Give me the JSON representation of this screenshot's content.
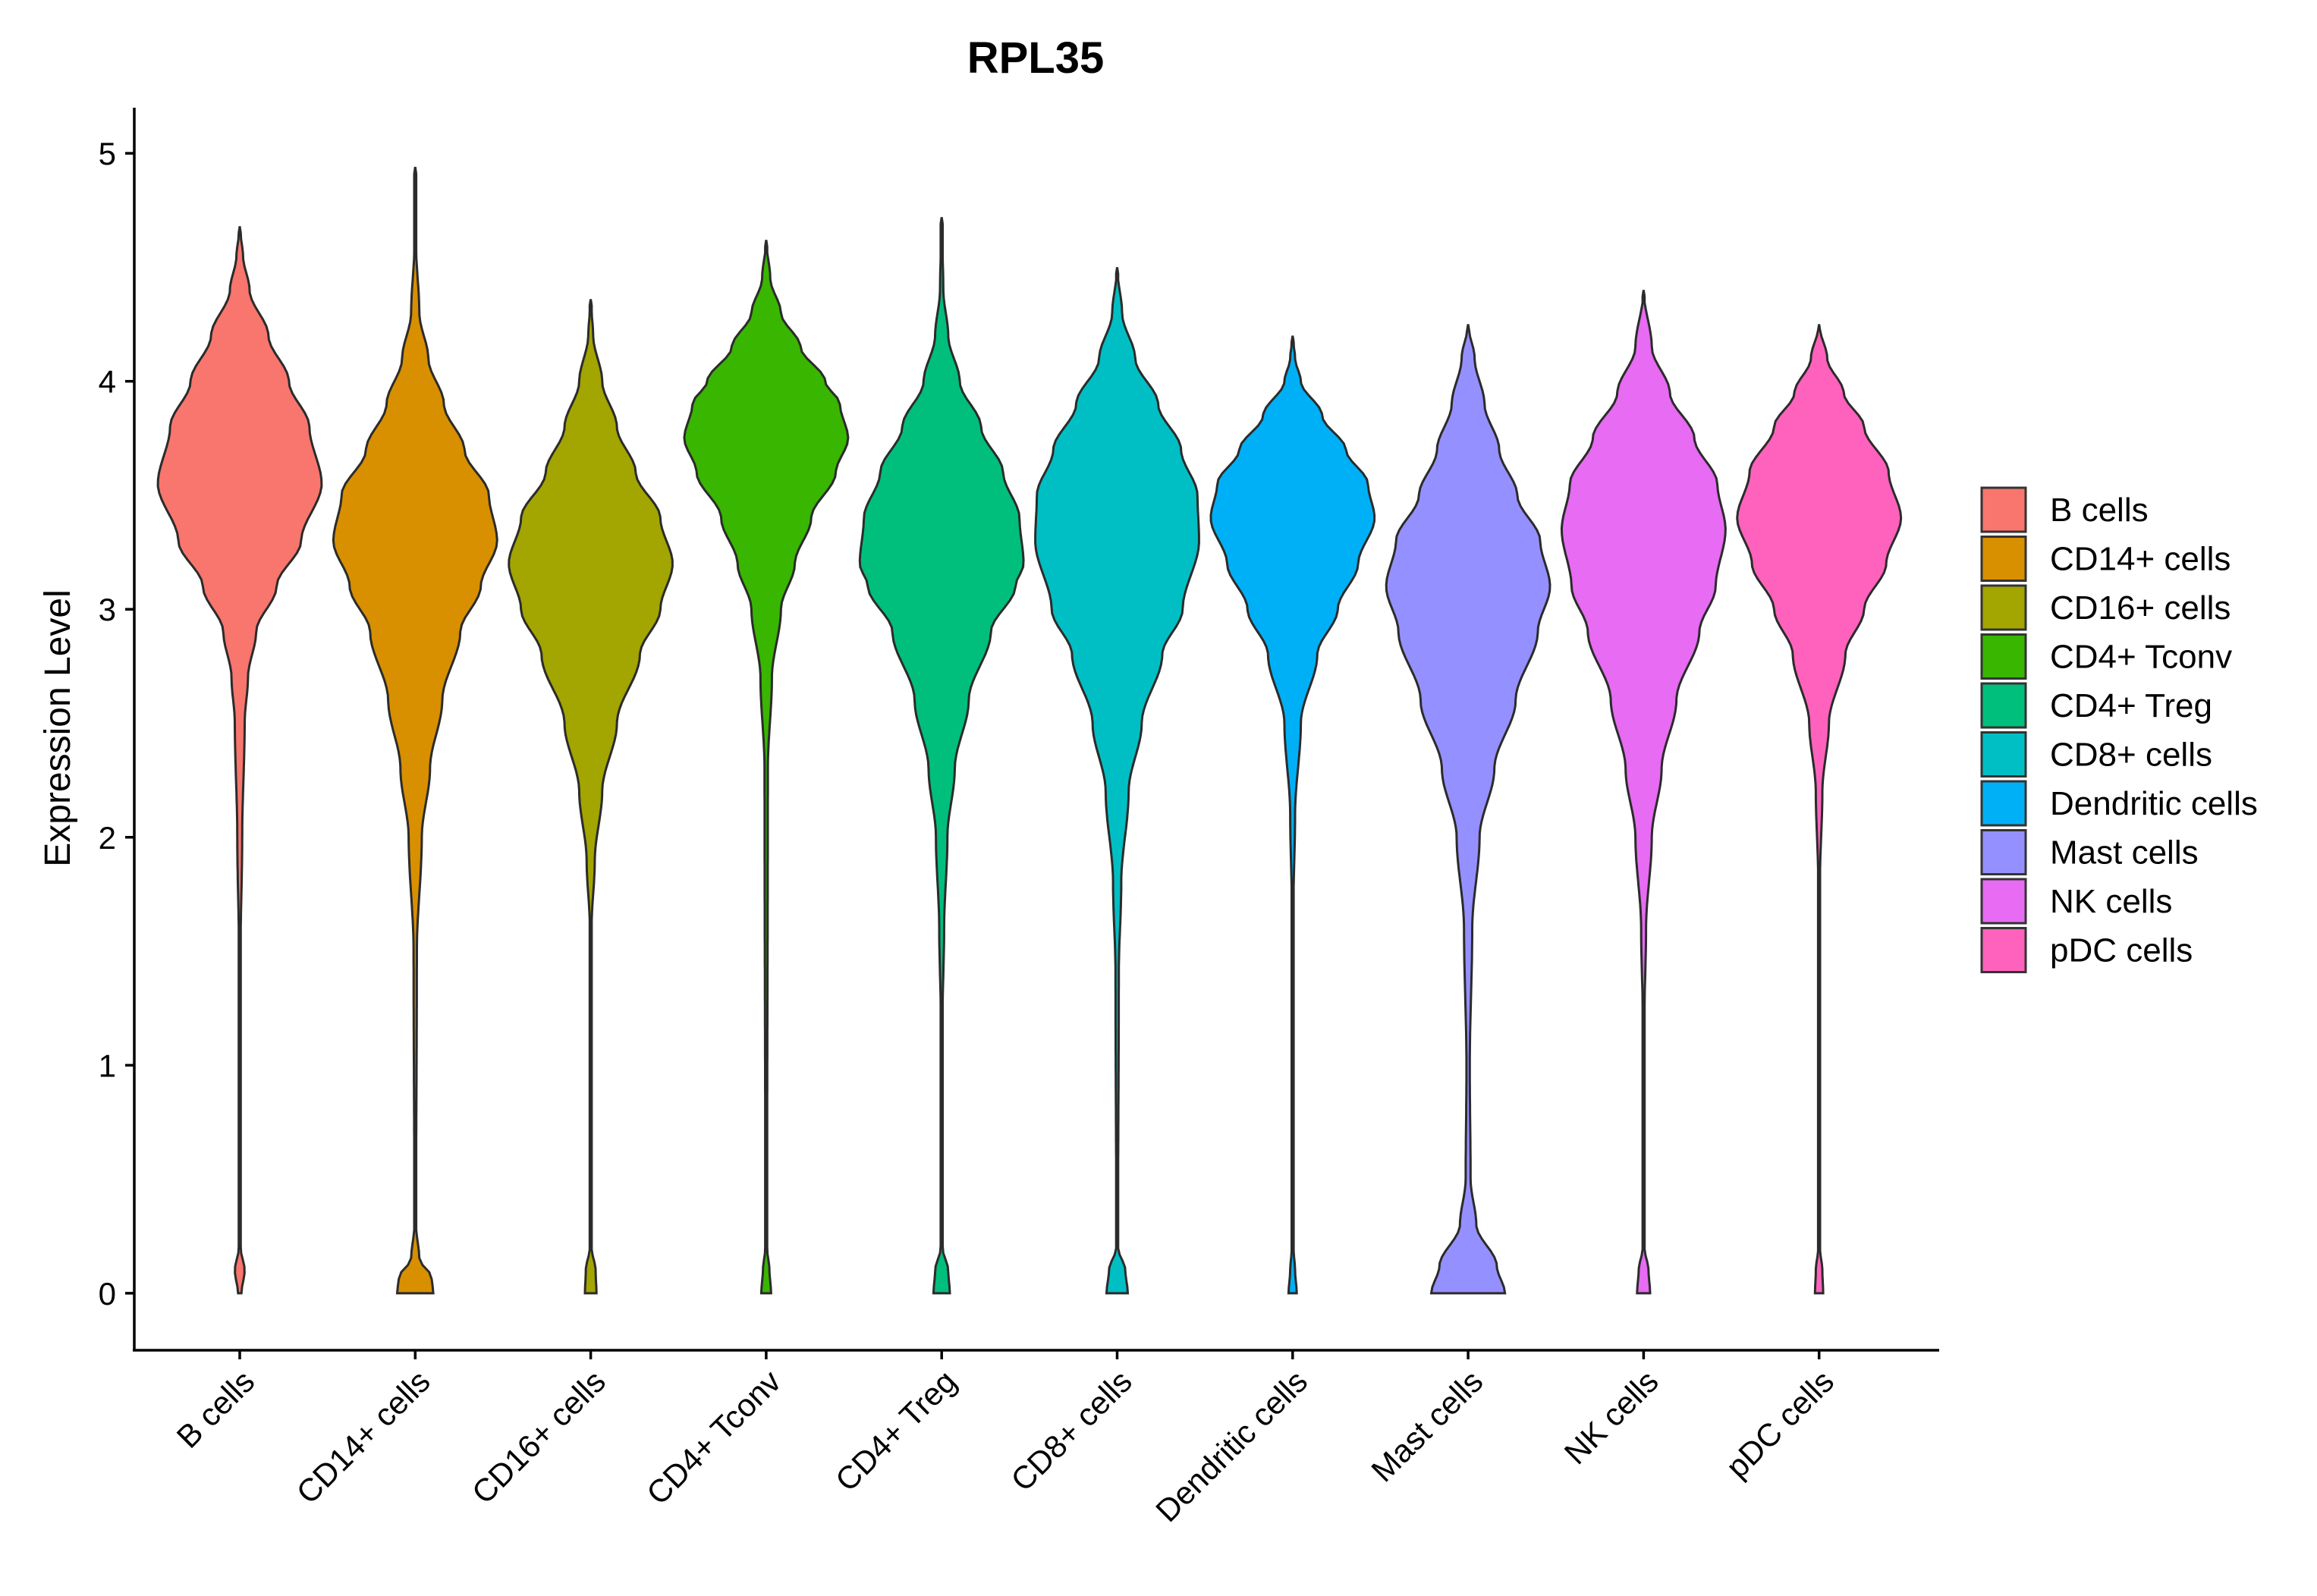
{
  "chart_data": {
    "type": "violin",
    "title": "RPL35",
    "xlabel": "",
    "ylabel": "Expression Level",
    "ylim": [
      -0.25,
      5.2
    ],
    "yticks": [
      0,
      1,
      2,
      3,
      4,
      5
    ],
    "categories": [
      "B cells",
      "CD14+ cells",
      "CD16+ cells",
      "CD4+ Tconv",
      "CD4+ Treg",
      "CD8+ cells",
      "Dendritic cells",
      "Mast cells",
      "NK cells",
      "pDC cells"
    ],
    "colors": [
      "#F8766D",
      "#D89000",
      "#A3A500",
      "#39B600",
      "#00BF7D",
      "#00BFC4",
      "#00B0F6",
      "#9590FF",
      "#E76BF3",
      "#FF62BC"
    ],
    "series": [
      {
        "name": "B cells",
        "max": 4.68,
        "mode": 3.5,
        "zero_bump": 0.1,
        "profile": [
          [
            0,
            0.02
          ],
          [
            0.1,
            0.06
          ],
          [
            0.2,
            0.01
          ],
          [
            1.5,
            0.01
          ],
          [
            2.0,
            0.03
          ],
          [
            2.5,
            0.06
          ],
          [
            2.7,
            0.1
          ],
          [
            2.9,
            0.2
          ],
          [
            3.1,
            0.45
          ],
          [
            3.3,
            0.75
          ],
          [
            3.55,
            1.0
          ],
          [
            3.8,
            0.85
          ],
          [
            4.0,
            0.6
          ],
          [
            4.2,
            0.35
          ],
          [
            4.4,
            0.12
          ],
          [
            4.55,
            0.04
          ],
          [
            4.68,
            0.0
          ]
        ]
      },
      {
        "name": "CD14+ cells",
        "max": 4.94,
        "mode": 3.25,
        "zero_bump": 0.25,
        "profile": [
          [
            0,
            0.22
          ],
          [
            0.07,
            0.2
          ],
          [
            0.15,
            0.05
          ],
          [
            0.3,
            0.01
          ],
          [
            1.5,
            0.02
          ],
          [
            2.0,
            0.08
          ],
          [
            2.3,
            0.18
          ],
          [
            2.6,
            0.33
          ],
          [
            2.9,
            0.55
          ],
          [
            3.1,
            0.8
          ],
          [
            3.3,
            1.0
          ],
          [
            3.5,
            0.9
          ],
          [
            3.7,
            0.6
          ],
          [
            3.9,
            0.35
          ],
          [
            4.1,
            0.16
          ],
          [
            4.3,
            0.05
          ],
          [
            4.6,
            0.01
          ],
          [
            4.94,
            0.0
          ]
        ]
      },
      {
        "name": "CD16+ cells",
        "max": 4.36,
        "mode": 3.2,
        "zero_bump": 0.12,
        "profile": [
          [
            0,
            0.07
          ],
          [
            0.1,
            0.06
          ],
          [
            0.2,
            0.01
          ],
          [
            1.6,
            0.01
          ],
          [
            1.9,
            0.05
          ],
          [
            2.2,
            0.14
          ],
          [
            2.5,
            0.32
          ],
          [
            2.8,
            0.6
          ],
          [
            3.0,
            0.85
          ],
          [
            3.2,
            1.0
          ],
          [
            3.4,
            0.85
          ],
          [
            3.6,
            0.55
          ],
          [
            3.8,
            0.32
          ],
          [
            4.0,
            0.14
          ],
          [
            4.2,
            0.03
          ],
          [
            4.36,
            0.0
          ]
        ]
      },
      {
        "name": "CD4+ Tconv",
        "max": 4.62,
        "mode": 3.75,
        "zero_bump": 0.08,
        "profile": [
          [
            0,
            0.06
          ],
          [
            0.1,
            0.04
          ],
          [
            0.2,
            0.01
          ],
          [
            2.3,
            0.02
          ],
          [
            2.7,
            0.07
          ],
          [
            3.0,
            0.18
          ],
          [
            3.2,
            0.35
          ],
          [
            3.4,
            0.55
          ],
          [
            3.6,
            0.85
          ],
          [
            3.75,
            1.0
          ],
          [
            3.9,
            0.9
          ],
          [
            4.0,
            0.72
          ],
          [
            4.15,
            0.42
          ],
          [
            4.3,
            0.18
          ],
          [
            4.45,
            0.05
          ],
          [
            4.62,
            0.0
          ]
        ]
      },
      {
        "name": "CD4+ Treg",
        "max": 4.72,
        "mode": 3.2,
        "zero_bump": 0.12,
        "profile": [
          [
            0,
            0.1
          ],
          [
            0.1,
            0.08
          ],
          [
            0.2,
            0.01
          ],
          [
            1.2,
            0.01
          ],
          [
            1.6,
            0.03
          ],
          [
            2.0,
            0.07
          ],
          [
            2.3,
            0.16
          ],
          [
            2.6,
            0.33
          ],
          [
            2.9,
            0.6
          ],
          [
            3.1,
            0.9
          ],
          [
            3.2,
            1.0
          ],
          [
            3.4,
            0.95
          ],
          [
            3.6,
            0.75
          ],
          [
            3.8,
            0.48
          ],
          [
            4.0,
            0.22
          ],
          [
            4.2,
            0.08
          ],
          [
            4.4,
            0.02
          ],
          [
            4.72,
            0.0
          ]
        ]
      },
      {
        "name": "CD8+ cells",
        "max": 4.5,
        "mode": 3.3,
        "zero_bump": 0.16,
        "profile": [
          [
            0,
            0.13
          ],
          [
            0.1,
            0.1
          ],
          [
            0.2,
            0.01
          ],
          [
            1.4,
            0.02
          ],
          [
            1.8,
            0.05
          ],
          [
            2.2,
            0.14
          ],
          [
            2.5,
            0.3
          ],
          [
            2.8,
            0.55
          ],
          [
            3.0,
            0.8
          ],
          [
            3.3,
            1.0
          ],
          [
            3.5,
            0.98
          ],
          [
            3.7,
            0.78
          ],
          [
            3.9,
            0.5
          ],
          [
            4.1,
            0.22
          ],
          [
            4.3,
            0.06
          ],
          [
            4.5,
            0.0
          ]
        ]
      },
      {
        "name": "Dendritic cells",
        "max": 4.2,
        "mode": 3.4,
        "zero_bump": 0.05,
        "profile": [
          [
            0,
            0.05
          ],
          [
            0.1,
            0.03
          ],
          [
            0.2,
            0.01
          ],
          [
            1.7,
            0.01
          ],
          [
            2.1,
            0.03
          ],
          [
            2.5,
            0.1
          ],
          [
            2.8,
            0.3
          ],
          [
            3.0,
            0.55
          ],
          [
            3.2,
            0.8
          ],
          [
            3.4,
            1.0
          ],
          [
            3.55,
            0.92
          ],
          [
            3.7,
            0.65
          ],
          [
            3.85,
            0.36
          ],
          [
            4.0,
            0.1
          ],
          [
            4.1,
            0.03
          ],
          [
            4.2,
            0.0
          ]
        ]
      },
      {
        "name": "Mast cells",
        "max": 4.25,
        "mode": 3.1,
        "zero_bump": 0.52,
        "profile": [
          [
            0,
            0.45
          ],
          [
            0.12,
            0.35
          ],
          [
            0.3,
            0.1
          ],
          [
            0.5,
            0.03
          ],
          [
            1.0,
            0.02
          ],
          [
            1.6,
            0.05
          ],
          [
            2.0,
            0.14
          ],
          [
            2.3,
            0.32
          ],
          [
            2.6,
            0.58
          ],
          [
            2.9,
            0.85
          ],
          [
            3.1,
            1.0
          ],
          [
            3.3,
            0.88
          ],
          [
            3.5,
            0.6
          ],
          [
            3.7,
            0.38
          ],
          [
            3.9,
            0.2
          ],
          [
            4.1,
            0.08
          ],
          [
            4.25,
            0.0
          ]
        ]
      },
      {
        "name": "NK cells",
        "max": 4.4,
        "mode": 3.35,
        "zero_bump": 0.1,
        "profile": [
          [
            0,
            0.08
          ],
          [
            0.1,
            0.06
          ],
          [
            0.2,
            0.01
          ],
          [
            1.2,
            0.01
          ],
          [
            1.6,
            0.03
          ],
          [
            2.0,
            0.1
          ],
          [
            2.3,
            0.22
          ],
          [
            2.6,
            0.4
          ],
          [
            2.9,
            0.68
          ],
          [
            3.1,
            0.88
          ],
          [
            3.35,
            1.0
          ],
          [
            3.55,
            0.9
          ],
          [
            3.75,
            0.62
          ],
          [
            3.95,
            0.32
          ],
          [
            4.15,
            0.1
          ],
          [
            4.4,
            0.0
          ]
        ]
      },
      {
        "name": "pDC cells",
        "max": 4.25,
        "mode": 3.4,
        "zero_bump": 0.06,
        "profile": [
          [
            0,
            0.05
          ],
          [
            0.1,
            0.04
          ],
          [
            0.2,
            0.01
          ],
          [
            1.8,
            0.01
          ],
          [
            2.2,
            0.04
          ],
          [
            2.5,
            0.12
          ],
          [
            2.8,
            0.32
          ],
          [
            3.0,
            0.55
          ],
          [
            3.2,
            0.82
          ],
          [
            3.4,
            1.0
          ],
          [
            3.6,
            0.85
          ],
          [
            3.8,
            0.55
          ],
          [
            3.95,
            0.3
          ],
          [
            4.1,
            0.1
          ],
          [
            4.25,
            0.0
          ]
        ]
      }
    ],
    "legend": {
      "position": "right",
      "entries": [
        "B cells",
        "CD14+ cells",
        "CD16+ cells",
        "CD4+ Tconv",
        "CD4+ Treg",
        "CD8+ cells",
        "Dendritic cells",
        "Mast cells",
        "NK cells",
        "pDC cells"
      ]
    }
  }
}
